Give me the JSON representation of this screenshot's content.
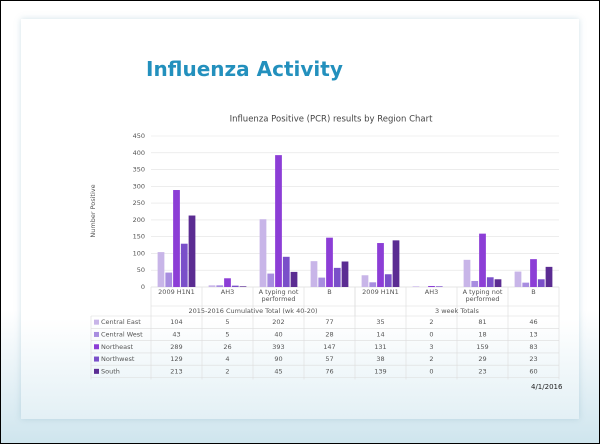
{
  "slide_title": "Influenza Activity",
  "date": "4/1/2016",
  "chart_data": {
    "type": "bar",
    "title": "Influenza Positive (PCR) results by Region Chart",
    "y_label": "Number Positive",
    "categories": [
      "2009 H1N1",
      "AH3",
      "A typing not performed",
      "B",
      "2009 H1N1",
      "AH3",
      "A typing not performed",
      "B"
    ],
    "groups": [
      "2015-2016 Cumulative Total (wk 40-20)",
      "3 week Totals"
    ],
    "series": [
      {
        "name": "Central East",
        "color": "#c8b5e8",
        "values": [
          104,
          5,
          202,
          77,
          35,
          2,
          81,
          46
        ]
      },
      {
        "name": "Central West",
        "color": "#a88de0",
        "values": [
          43,
          5,
          40,
          28,
          14,
          0,
          18,
          13
        ]
      },
      {
        "name": "Northeast",
        "color": "#8c3ed6",
        "values": [
          289,
          26,
          393,
          147,
          131,
          3,
          159,
          83
        ]
      },
      {
        "name": "Northwest",
        "color": "#7a4fc9",
        "values": [
          129,
          4,
          90,
          57,
          38,
          2,
          29,
          23
        ]
      },
      {
        "name": "South",
        "color": "#5b2c92",
        "values": [
          213,
          2,
          45,
          76,
          139,
          0,
          23,
          60
        ]
      }
    ],
    "ylim": [
      0,
      450
    ],
    "yticks": [
      0,
      50,
      100,
      150,
      200,
      250,
      300,
      350,
      400,
      450
    ],
    "grid": true
  }
}
